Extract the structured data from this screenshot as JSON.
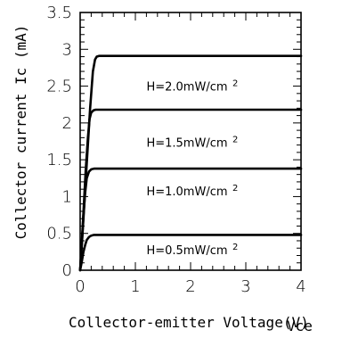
{
  "chart_data": {
    "type": "line",
    "title": "",
    "xlabel": "Collector-emitter Voltage(V)",
    "xlabel_overlap": "Vce",
    "ylabel": "Collector current Ic (mA)",
    "xlim": [
      0,
      4
    ],
    "ylim": [
      0,
      3.5
    ],
    "x_ticks": [
      0,
      1,
      2,
      3,
      4
    ],
    "y_ticks": [
      0,
      0.5,
      1,
      1.5,
      2,
      2.5,
      3,
      3.5
    ],
    "x_tick_labels": [
      "0",
      "1",
      "2",
      "3",
      "4"
    ],
    "y_tick_labels": [
      "0",
      "0.5",
      "1",
      "1.5",
      "2",
      "2.5",
      "3",
      "3.5"
    ],
    "grid": false,
    "series": [
      {
        "name": "H=0.5mW/cm 2",
        "label_main": "H=0.5mW/cm",
        "label_sup": "2",
        "label_x": 2.0,
        "label_y": 0.28,
        "x": [
          0.0,
          0.03,
          0.06,
          0.09,
          0.12,
          0.16,
          0.2,
          0.25,
          0.3,
          4.0
        ],
        "y": [
          0.0,
          0.12,
          0.25,
          0.34,
          0.41,
          0.45,
          0.47,
          0.48,
          0.48,
          0.48
        ]
      },
      {
        "name": "H=1.0mW/cm 2",
        "label_main": "H=1.0mW/cm",
        "label_sup": "2",
        "label_x": 2.0,
        "label_y": 1.08,
        "x": [
          0.0,
          0.03,
          0.06,
          0.09,
          0.12,
          0.16,
          0.2,
          0.25,
          0.3,
          4.0
        ],
        "y": [
          0.0,
          0.35,
          0.75,
          1.05,
          1.25,
          1.34,
          1.37,
          1.38,
          1.38,
          1.38
        ]
      },
      {
        "name": "H=1.5mW/cm 2",
        "label_main": "H=1.5mW/cm",
        "label_sup": "2",
        "label_x": 2.0,
        "label_y": 1.74,
        "x": [
          0.0,
          0.05,
          0.1,
          0.14,
          0.17,
          0.2,
          0.24,
          0.28,
          0.32,
          4.0
        ],
        "y": [
          0.0,
          0.65,
          1.35,
          1.8,
          2.05,
          2.14,
          2.17,
          2.18,
          2.18,
          2.18
        ]
      },
      {
        "name": "H=2.0mW/cm 2",
        "label_main": "H=2.0mW/cm",
        "label_sup": "2",
        "label_x": 2.0,
        "label_y": 2.5,
        "x": [
          0.0,
          0.06,
          0.12,
          0.18,
          0.23,
          0.27,
          0.3,
          0.34,
          0.38,
          4.0
        ],
        "y": [
          0.0,
          0.7,
          1.45,
          2.2,
          2.7,
          2.86,
          2.9,
          2.91,
          2.91,
          2.91
        ]
      }
    ]
  }
}
